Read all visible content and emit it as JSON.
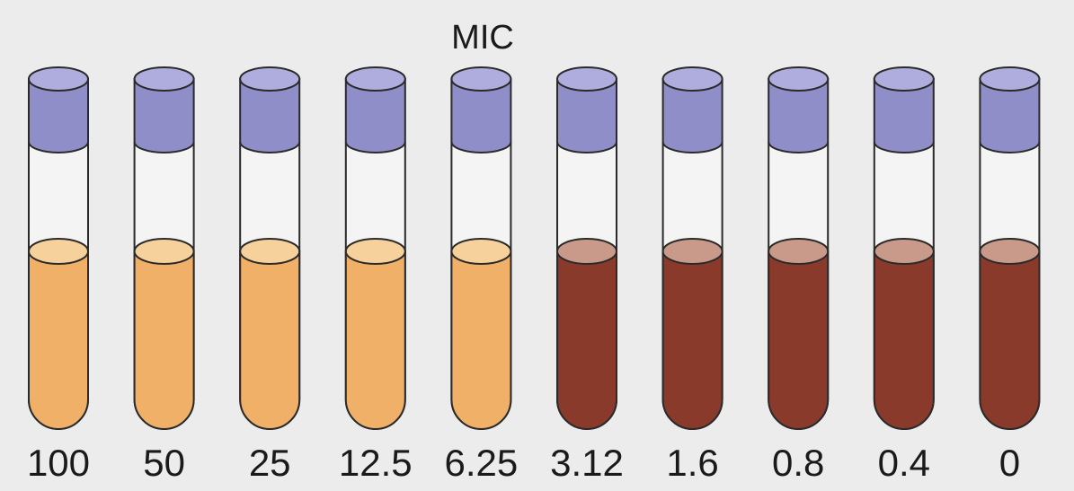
{
  "title": "MIC",
  "cap_color": "#8f8ec9",
  "cap_top_color": "#aeadde",
  "tubes": [
    {
      "label": "100",
      "color": "#f0b068",
      "surface_color": "#f6d19b"
    },
    {
      "label": "50",
      "color": "#f0b068",
      "surface_color": "#f6d19b"
    },
    {
      "label": "25",
      "color": "#f0b068",
      "surface_color": "#f6d19b"
    },
    {
      "label": "12.5",
      "color": "#f0b068",
      "surface_color": "#f6d19b"
    },
    {
      "label": "6.25",
      "color": "#f0b068",
      "surface_color": "#f6d19b"
    },
    {
      "label": "3.12",
      "color": "#8a3a2b",
      "surface_color": "#c99a8a"
    },
    {
      "label": "1.6",
      "color": "#8a3a2b",
      "surface_color": "#c99a8a"
    },
    {
      "label": "0.8",
      "color": "#8a3a2b",
      "surface_color": "#c99a8a"
    },
    {
      "label": "0.4",
      "color": "#8a3a2b",
      "surface_color": "#c99a8a"
    },
    {
      "label": "0",
      "color": "#8a3a2b",
      "surface_color": "#c99a8a"
    }
  ]
}
